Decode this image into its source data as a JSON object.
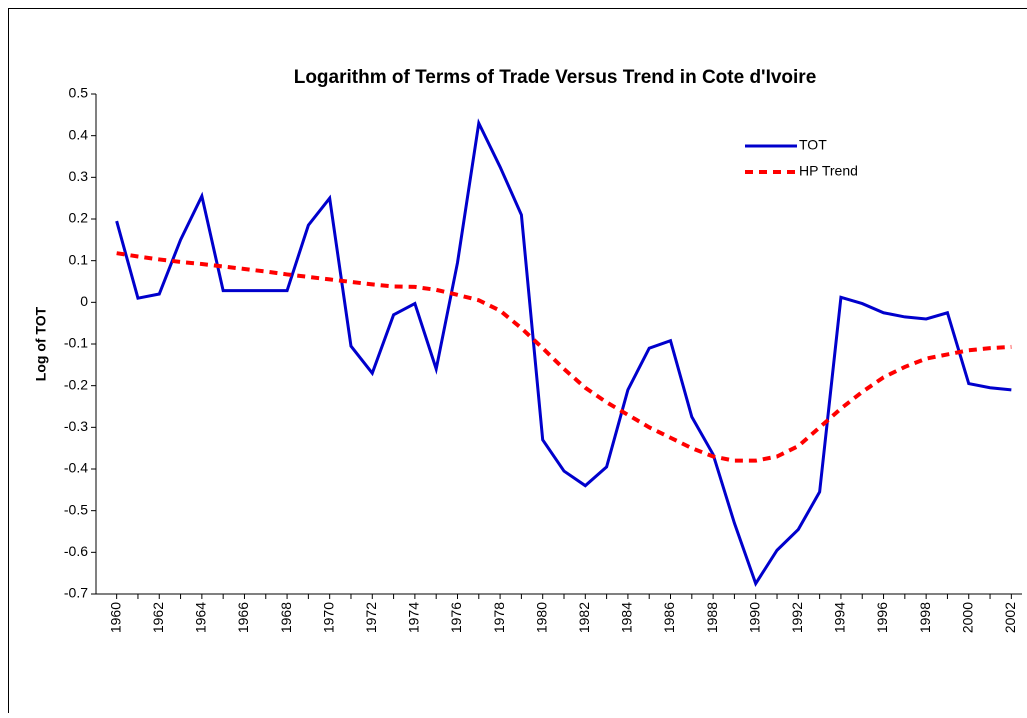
{
  "chart_data": {
    "type": "line",
    "title": "Logarithm of Terms of Trade Versus Trend in Cote d'Ivoire",
    "y_label": "Log of TOT",
    "categories": [
      "1960",
      null,
      "1962",
      null,
      "1964",
      null,
      "1966",
      null,
      "1968",
      null,
      "1970",
      null,
      "1972",
      null,
      "1974",
      null,
      "1976",
      null,
      "1978",
      null,
      "1980",
      null,
      "1982",
      null,
      "1984",
      null,
      "1986",
      null,
      "1988",
      null,
      "1990",
      null,
      "1992",
      null,
      "1994",
      null,
      "1996",
      null,
      "1998",
      null,
      "2000",
      null,
      "2002"
    ],
    "series": [
      {
        "name": "TOT",
        "color": "#0000cc",
        "dash": "solid",
        "values": [
          0.195,
          0.01,
          0.02,
          0.15,
          0.255,
          0.028,
          0.028,
          0.028,
          0.028,
          0.185,
          0.25,
          -0.105,
          -0.17,
          -0.03,
          -0.003,
          -0.16,
          0.095,
          0.43,
          0.325,
          0.21,
          -0.33,
          -0.405,
          -0.44,
          -0.395,
          -0.21,
          -0.11,
          -0.092,
          -0.275,
          -0.365,
          -0.53,
          -0.675,
          -0.595,
          -0.545,
          -0.455,
          0.012,
          -0.003,
          -0.025,
          -0.035,
          -0.04,
          -0.025,
          -0.195,
          -0.205,
          -0.21
        ]
      },
      {
        "name": "HP Trend",
        "color": "#ff0000",
        "dash": "dashed",
        "values": [
          0.118,
          0.11,
          0.103,
          0.097,
          0.092,
          0.086,
          0.08,
          0.074,
          0.067,
          0.061,
          0.055,
          0.049,
          0.043,
          0.038,
          0.037,
          0.03,
          0.018,
          0.005,
          -0.02,
          -0.062,
          -0.11,
          -0.16,
          -0.205,
          -0.24,
          -0.27,
          -0.3,
          -0.325,
          -0.35,
          -0.37,
          -0.38,
          -0.38,
          -0.37,
          -0.345,
          -0.3,
          -0.255,
          -0.215,
          -0.18,
          -0.155,
          -0.135,
          -0.125,
          -0.115,
          -0.11,
          -0.107
        ]
      }
    ],
    "ylim": [
      -0.7,
      0.5
    ],
    "yticks": [
      -0.7,
      -0.6,
      -0.5,
      -0.4,
      -0.3,
      -0.2,
      -0.1,
      0,
      0.1,
      0.2,
      0.3,
      0.4,
      0.5
    ],
    "grid": false,
    "legend": "upper right"
  }
}
